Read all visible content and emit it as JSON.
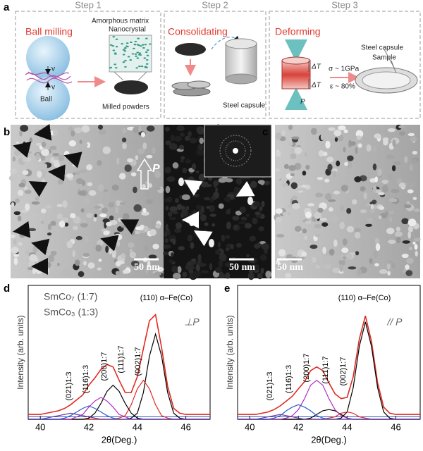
{
  "panel_a": {
    "label": "a",
    "steps": [
      {
        "title": "Step 1",
        "name": "Ball milling",
        "texts": [
          "v",
          "v",
          "Ball",
          "Amorphous matrix",
          "Nanocrystal",
          "Milled powders"
        ]
      },
      {
        "title": "Step 2",
        "name": "Consolidating",
        "texts": [
          "Steel capsule"
        ]
      },
      {
        "title": "Step 3",
        "name": "Deforming",
        "texts": [
          "ΔT",
          "ΔT",
          "P",
          "σ ~ 1GPa",
          "ε ~ 80%",
          "Steel capsule",
          "Sample"
        ]
      }
    ]
  },
  "panel_b": {
    "label": "b",
    "arrow_label": "P",
    "scale_bars": [
      "50 nm",
      "50 nm"
    ]
  },
  "panel_c": {
    "label": "c",
    "scale_bar": "50 nm"
  },
  "chart_data": [
    {
      "type": "line",
      "panel_label": "d",
      "xlabel": "2θ(Deg.)",
      "ylabel": "Intensity (arb. units)",
      "legend_texts": [
        "SmCo₇  (1:7)",
        "SmCo₃  (1:3)"
      ],
      "direction": "⊥P",
      "annotations": [
        "(021)1:3",
        "(116)1:3",
        "(200)1:7",
        "(111)1:7",
        "(002)1:7",
        "(110) α–Fe(Co)"
      ],
      "xlim": [
        39.5,
        47
      ],
      "ylim": [
        0,
        110
      ],
      "xticks": [
        40,
        42,
        44,
        46
      ],
      "x": [
        39.5,
        39.75,
        40,
        40.25,
        40.5,
        40.75,
        41,
        41.25,
        41.5,
        41.75,
        42,
        42.25,
        42.5,
        42.75,
        43,
        43.25,
        43.5,
        43.75,
        44,
        44.25,
        44.5,
        44.75,
        45,
        45.25,
        45.5,
        45.75,
        46,
        46.25,
        46.5,
        46.75,
        47
      ],
      "series": [
        {
          "color": "#e02a20",
          "values": [
            4,
            4,
            4,
            5,
            6,
            7,
            9,
            12,
            16,
            20,
            28,
            34,
            41,
            45,
            43,
            32,
            22,
            22,
            35,
            58,
            81,
            86,
            59,
            27,
            9,
            5,
            4,
            4,
            4,
            4,
            4
          ]
        },
        {
          "color": "#000000",
          "values": [
            0,
            0,
            0,
            0,
            0,
            0,
            0,
            0,
            0,
            0,
            0,
            0,
            0,
            0,
            0,
            0,
            0,
            1,
            5,
            22,
            52,
            70,
            52,
            22,
            5,
            1,
            0,
            0,
            0,
            0,
            0
          ]
        },
        {
          "color": "#e02a20",
          "values": [
            0,
            0,
            0,
            0,
            0,
            0,
            0,
            0,
            0,
            0,
            0,
            0,
            0,
            0,
            0,
            1,
            3,
            12,
            25,
            32,
            25,
            12,
            3,
            1,
            0,
            0,
            0,
            0,
            0,
            0,
            0
          ]
        },
        {
          "color": "#000000",
          "values": [
            0,
            0,
            0,
            0,
            0,
            0,
            0,
            0,
            0,
            0,
            1,
            5,
            13,
            23,
            28,
            23,
            13,
            5,
            1,
            0,
            0,
            0,
            0,
            0,
            0,
            0,
            0,
            0,
            0,
            0,
            0
          ]
        },
        {
          "color": "#b030c0",
          "values": [
            0,
            0,
            0,
            0,
            0,
            0,
            0,
            0,
            2,
            4,
            10,
            15,
            18,
            15,
            10,
            4,
            2,
            0,
            0,
            0,
            0,
            0,
            0,
            0,
            0,
            0,
            0,
            0,
            0,
            0,
            0
          ]
        },
        {
          "color": "#2a5cc8",
          "values": [
            0,
            0,
            0,
            0,
            0,
            0,
            1,
            3,
            6,
            9,
            11,
            9,
            6,
            3,
            1,
            0,
            0,
            0,
            0,
            0,
            0,
            0,
            0,
            0,
            0,
            0,
            0,
            0,
            0,
            0,
            0
          ]
        },
        {
          "color": "#6a3d9a",
          "values": [
            0,
            0,
            0,
            1,
            2,
            3,
            4,
            5,
            4,
            3,
            2,
            1,
            0,
            0,
            0,
            0,
            0,
            0,
            0,
            0,
            0,
            0,
            0,
            0,
            0,
            0,
            0,
            0,
            0,
            0,
            0
          ]
        }
      ]
    },
    {
      "type": "line",
      "panel_label": "e",
      "xlabel": "2θ(Deg.)",
      "ylabel": "Intensity (arb. units)",
      "direction": "// P",
      "annotations": [
        "(021)1:3",
        "(116)1:3",
        "(200)1:7",
        "(111)1:7",
        "(002)1:7",
        "(110) α–Fe(Co)"
      ],
      "xlim": [
        39.5,
        47
      ],
      "ylim": [
        0,
        110
      ],
      "xticks": [
        40,
        42,
        44,
        46
      ],
      "x": [
        39.5,
        39.75,
        40,
        40.25,
        40.5,
        40.75,
        41,
        41.25,
        41.5,
        41.75,
        42,
        42.25,
        42.5,
        42.75,
        43,
        43.25,
        43.5,
        43.75,
        44,
        44.25,
        44.5,
        44.75,
        45,
        45.25,
        45.5,
        45.75,
        46,
        46.25,
        46.5,
        46.75,
        47
      ],
      "series": [
        {
          "color": "#e02a20",
          "values": [
            4,
            4,
            4,
            4,
            5,
            6,
            8,
            11,
            15,
            19,
            25,
            31,
            40,
            43,
            40,
            30,
            21,
            17,
            18,
            35,
            66,
            85,
            64,
            30,
            10,
            5,
            4,
            4,
            4,
            4,
            4
          ]
        },
        {
          "color": "#000000",
          "values": [
            0,
            0,
            0,
            0,
            0,
            0,
            0,
            0,
            0,
            0,
            0,
            0,
            0,
            0,
            0,
            0,
            0,
            1,
            6,
            26,
            60,
            80,
            60,
            26,
            6,
            1,
            0,
            0,
            0,
            0,
            0
          ]
        },
        {
          "color": "#e02a20",
          "values": [
            0,
            0,
            0,
            0,
            0,
            0,
            0,
            0,
            0,
            0,
            0,
            0,
            0,
            0,
            0,
            1,
            2,
            5,
            6,
            5,
            2,
            1,
            0,
            0,
            0,
            0,
            0,
            0,
            0,
            0,
            0
          ]
        },
        {
          "color": "#000000",
          "values": [
            0,
            0,
            0,
            0,
            0,
            0,
            0,
            0,
            0,
            0,
            0,
            0,
            1,
            4,
            7,
            8,
            7,
            4,
            1,
            0,
            0,
            0,
            0,
            0,
            0,
            0,
            0,
            0,
            0,
            0,
            0
          ]
        },
        {
          "color": "#b030c0",
          "values": [
            0,
            0,
            0,
            0,
            0,
            0,
            0,
            0,
            1,
            3,
            8,
            17,
            28,
            32,
            28,
            17,
            8,
            3,
            1,
            0,
            0,
            0,
            0,
            0,
            0,
            0,
            0,
            0,
            0,
            0,
            0
          ]
        },
        {
          "color": "#2a5cc8",
          "values": [
            0,
            0,
            0,
            0,
            0,
            0,
            1,
            3,
            7,
            10,
            12,
            10,
            7,
            3,
            1,
            0,
            0,
            0,
            0,
            0,
            0,
            0,
            0,
            0,
            0,
            0,
            0,
            0,
            0,
            0,
            0
          ]
        },
        {
          "color": "#6a3d9a",
          "values": [
            0,
            0,
            0,
            0,
            1,
            2,
            3,
            4,
            3,
            2,
            1,
            0,
            0,
            0,
            0,
            0,
            0,
            0,
            0,
            0,
            0,
            0,
            0,
            0,
            0,
            0,
            0,
            0,
            0,
            0,
            0
          ]
        }
      ]
    }
  ]
}
